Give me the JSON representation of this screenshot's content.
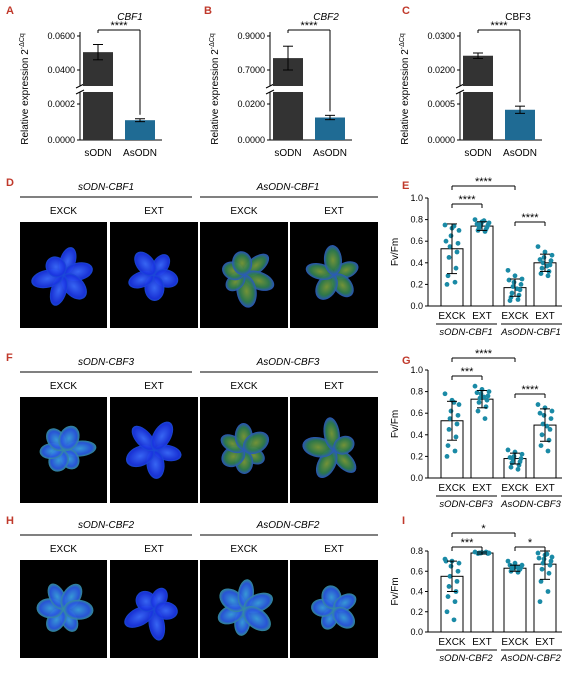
{
  "palette": {
    "dark_bar": "#333333",
    "blue_bar": "#1f6b94",
    "dot": "#1a8aa6",
    "sig_red": "#c0392b",
    "photo_bg": "#000000"
  },
  "expr_ylabel": "Relative expression 2^-ΔCq",
  "expr_ylabel_main": "Relative expression 2",
  "expr_ylabel_sup": "-ΔCq",
  "panels_expr": [
    {
      "letter": "A",
      "title": "CBF1",
      "title_italic": true,
      "sig": "****",
      "ticks_upper": [
        "0.0600",
        "0.0400"
      ],
      "ticks_lower": [
        "0.0002",
        "0.0000"
      ],
      "chart_data": {
        "type": "bar",
        "categories": [
          "sODN",
          "AsODN"
        ],
        "values": [
          0.0505,
          0.00011
        ],
        "errors": [
          0.0045,
          8e-06
        ],
        "broken_axis": true
      }
    },
    {
      "letter": "B",
      "title": "CBF2",
      "title_italic": true,
      "sig": "****",
      "ticks_upper": [
        "0.9000",
        "0.7000"
      ],
      "ticks_lower": [
        "0.0200",
        "0.0000"
      ],
      "chart_data": {
        "type": "bar",
        "categories": [
          "sODN",
          "AsODN"
        ],
        "values": [
          0.77,
          0.0125
        ],
        "errors": [
          0.07,
          0.0012
        ],
        "broken_axis": true
      }
    },
    {
      "letter": "C",
      "title": "CBF3",
      "title_italic": false,
      "sig": "****",
      "ticks_upper": [
        "0.0300",
        "0.0200"
      ],
      "ticks_lower": [
        "0.0005",
        "0.0000"
      ],
      "chart_data": {
        "type": "bar",
        "categories": [
          "sODN",
          "AsODN"
        ],
        "values": [
          0.0242,
          0.00042
        ],
        "errors": [
          0.0008,
          5e-05
        ],
        "broken_axis": true
      }
    }
  ],
  "panels_photo": [
    {
      "letter": "D",
      "group1": "sODN-CBF1",
      "group2": "AsODN-CBF1",
      "labels": [
        "EXCK",
        "EXT",
        "EXCK",
        "EXT"
      ]
    },
    {
      "letter": "F",
      "group1": "sODN-CBF3",
      "group2": "AsODN-CBF3",
      "labels": [
        "EXCK",
        "EXT",
        "EXCK",
        "EXT"
      ]
    },
    {
      "letter": "H",
      "group1": "sODN-CBF2",
      "group2": "AsODN-CBF2",
      "labels": [
        "EXCK",
        "EXT",
        "EXCK",
        "EXT"
      ]
    }
  ],
  "panels_fvfm": [
    {
      "letter": "E",
      "ylabel": "Fv/Fm",
      "group1": "sODN-CBF1",
      "group2": "AsODN-CBF1",
      "ticks": [
        "0.0",
        "0.2",
        "0.4",
        "0.6",
        "0.8",
        "1.0"
      ],
      "sig": [
        {
          "from": 0,
          "to": 1,
          "label": "****"
        },
        {
          "from": 0,
          "to": 2,
          "label": "****"
        },
        {
          "from": 2,
          "to": 3,
          "label": "****"
        }
      ],
      "chart_data": {
        "type": "bar",
        "categories": [
          "EXCK",
          "EXT",
          "EXCK",
          "EXT"
        ],
        "ylim": [
          0,
          1.0
        ],
        "values": [
          0.53,
          0.74,
          0.17,
          0.4
        ],
        "errors": [
          0.23,
          0.04,
          0.08,
          0.08
        ],
        "points": [
          [
            0.75,
            0.72,
            0.7,
            0.65,
            0.58,
            0.55,
            0.5,
            0.45,
            0.35,
            0.28,
            0.22,
            0.2,
            0.74,
            0.6
          ],
          [
            0.8,
            0.78,
            0.77,
            0.76,
            0.75,
            0.74,
            0.73,
            0.72,
            0.71,
            0.7,
            0.69,
            0.76,
            0.79
          ],
          [
            0.33,
            0.28,
            0.25,
            0.22,
            0.2,
            0.18,
            0.15,
            0.12,
            0.1,
            0.08,
            0.06,
            0.05,
            0.16,
            0.24
          ],
          [
            0.55,
            0.5,
            0.47,
            0.45,
            0.42,
            0.4,
            0.38,
            0.35,
            0.32,
            0.3,
            0.28,
            0.43,
            0.37
          ]
        ]
      }
    },
    {
      "letter": "G",
      "ylabel": "Fv/Fm",
      "group1": "sODN-CBF3",
      "group2": "AsODN-CBF3",
      "ticks": [
        "0.0",
        "0.2",
        "0.4",
        "0.6",
        "0.8",
        "1.0"
      ],
      "sig": [
        {
          "from": 0,
          "to": 1,
          "label": "***"
        },
        {
          "from": 0,
          "to": 2,
          "label": "****"
        },
        {
          "from": 2,
          "to": 3,
          "label": "****"
        }
      ],
      "chart_data": {
        "type": "bar",
        "categories": [
          "EXCK",
          "EXT",
          "EXCK",
          "EXT"
        ],
        "ylim": [
          0,
          1.0
        ],
        "values": [
          0.53,
          0.73,
          0.18,
          0.49
        ],
        "errors": [
          0.18,
          0.08,
          0.05,
          0.15
        ],
        "points": [
          [
            0.78,
            0.72,
            0.68,
            0.62,
            0.58,
            0.55,
            0.5,
            0.45,
            0.38,
            0.3,
            0.25,
            0.2,
            0.7
          ],
          [
            0.85,
            0.82,
            0.8,
            0.78,
            0.76,
            0.74,
            0.72,
            0.7,
            0.66,
            0.62,
            0.55,
            0.79,
            0.75
          ],
          [
            0.26,
            0.24,
            0.22,
            0.2,
            0.18,
            0.17,
            0.15,
            0.14,
            0.12,
            0.1,
            0.08,
            0.19
          ],
          [
            0.68,
            0.65,
            0.62,
            0.58,
            0.55,
            0.5,
            0.45,
            0.4,
            0.35,
            0.3,
            0.25,
            0.6,
            0.48
          ]
        ]
      }
    },
    {
      "letter": "I",
      "ylabel": "Fv/Fm",
      "group1": "sODN-CBF2",
      "group2": "AsODN-CBF2",
      "ticks": [
        "0.0",
        "0.2",
        "0.4",
        "0.6",
        "0.8"
      ],
      "sig": [
        {
          "from": 0,
          "to": 1,
          "label": "***"
        },
        {
          "from": 0,
          "to": 2,
          "label": "*"
        },
        {
          "from": 2,
          "to": 3,
          "label": "*"
        }
      ],
      "chart_data": {
        "type": "bar",
        "categories": [
          "EXCK",
          "EXT",
          "EXCK",
          "EXT"
        ],
        "ylim": [
          0,
          0.8
        ],
        "values": [
          0.55,
          0.78,
          0.63,
          0.67
        ],
        "errors": [
          0.15,
          0.01,
          0.03,
          0.15
        ],
        "points": [
          [
            0.72,
            0.7,
            0.68,
            0.65,
            0.6,
            0.55,
            0.5,
            0.45,
            0.4,
            0.35,
            0.3,
            0.2,
            0.12,
            0.7
          ],
          [
            0.79,
            0.785,
            0.78,
            0.78,
            0.775,
            0.78,
            0.785,
            0.78,
            0.79,
            0.775
          ],
          [
            0.7,
            0.68,
            0.66,
            0.65,
            0.64,
            0.63,
            0.62,
            0.62,
            0.61,
            0.6,
            0.59,
            0.66,
            0.64
          ],
          [
            0.78,
            0.76,
            0.74,
            0.72,
            0.7,
            0.68,
            0.66,
            0.62,
            0.58,
            0.5,
            0.4,
            0.3,
            0.77,
            0.73
          ]
        ]
      }
    }
  ]
}
